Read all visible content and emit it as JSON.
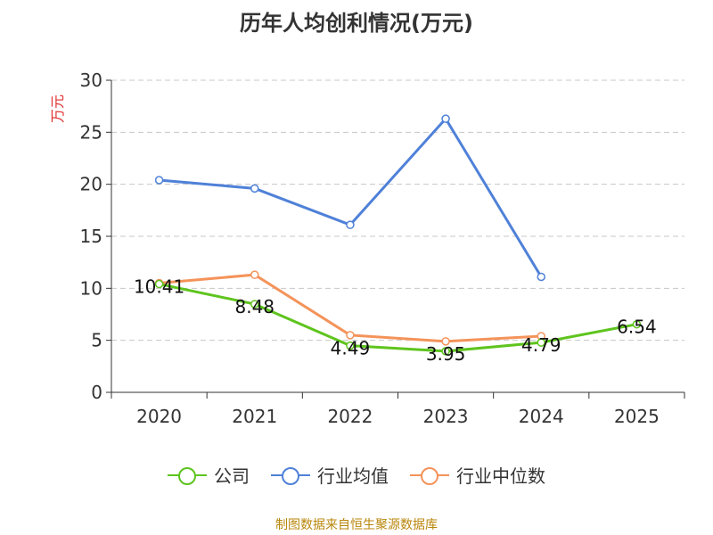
{
  "title": "历年人均创利情况(万元)",
  "source": "制图数据来自恒生聚源数据库",
  "colors": {
    "company": "#5ec41e",
    "industry_avg": "#4f81d8",
    "industry_median": "#f4935a",
    "ylabel": "#e03030"
  },
  "chart_data": {
    "type": "line",
    "title": "历年人均创利情况(万元)",
    "ylabel": "万元",
    "ylim": [
      0,
      30
    ],
    "yticks": [
      0,
      5,
      10,
      15,
      20,
      25,
      30
    ],
    "categories": [
      "2020",
      "2021",
      "2022",
      "2023",
      "2024",
      "2025"
    ],
    "legend_position": "bottom",
    "grid": true,
    "series": [
      {
        "name": "公司",
        "color": "#5ec41e",
        "values": [
          10.41,
          8.48,
          4.49,
          3.95,
          4.79,
          6.54
        ],
        "labels": [
          "10.41",
          "8.48",
          "4.49",
          "3.95",
          "4.79",
          "6.54"
        ]
      },
      {
        "name": "行业均值",
        "color": "#4f81d8",
        "values": [
          20.4,
          19.6,
          16.1,
          26.3,
          11.1,
          null
        ]
      },
      {
        "name": "行业中位数",
        "color": "#f4935a",
        "values": [
          10.5,
          11.3,
          5.5,
          4.9,
          5.4,
          null
        ]
      }
    ]
  }
}
